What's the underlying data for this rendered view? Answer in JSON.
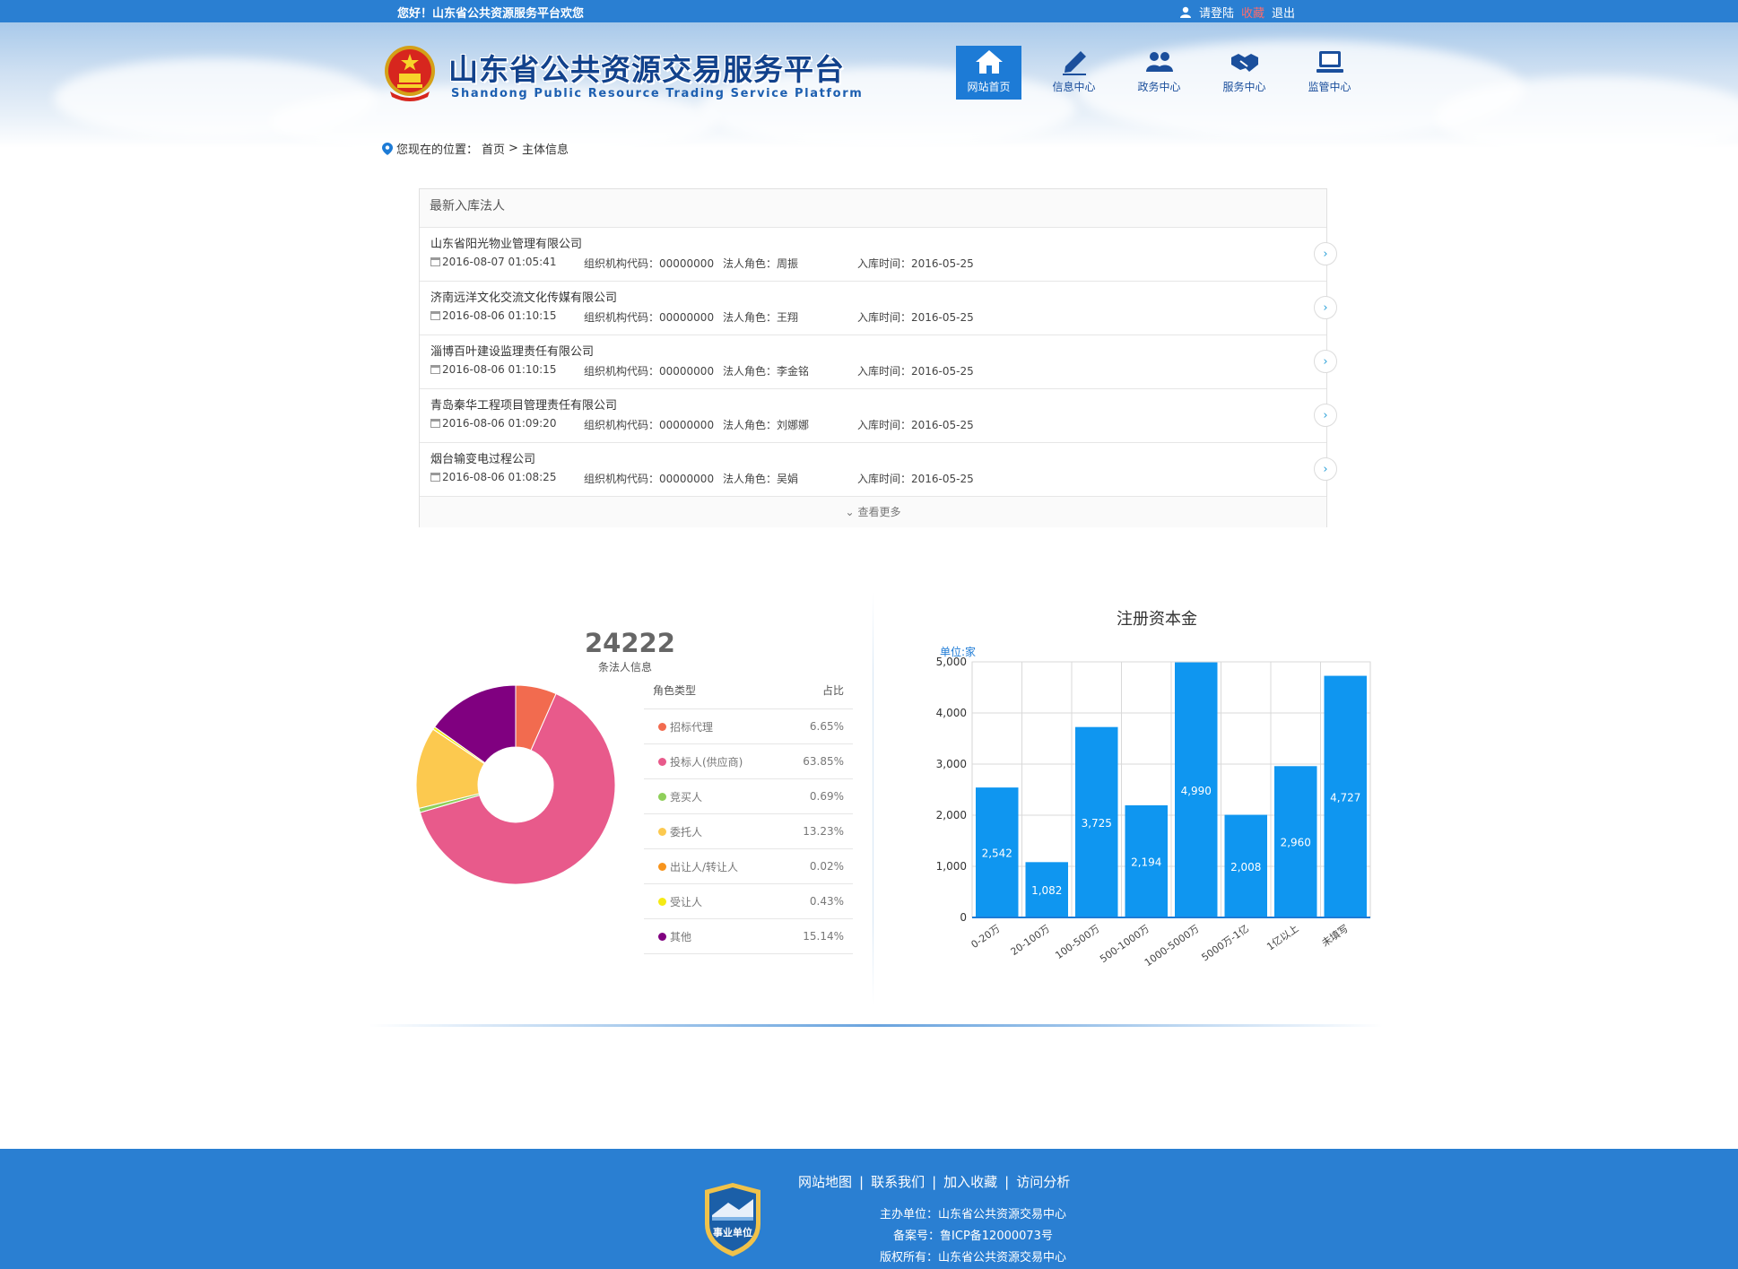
{
  "topbar": {
    "welcome": "您好！山东省公共资源服务平台欢您",
    "login": "请登陆",
    "favorite": "收藏",
    "logout": "退出"
  },
  "header": {
    "title": "山东省公共资源交易服务平台",
    "subtitle": "Shandong Public Resource Trading Service Platform",
    "nav": [
      {
        "label": "网站首页",
        "icon": "home-icon"
      },
      {
        "label": "信息中心",
        "icon": "pen-icon"
      },
      {
        "label": "政务中心",
        "icon": "users-icon"
      },
      {
        "label": "服务中心",
        "icon": "handshake-icon"
      },
      {
        "label": "监管中心",
        "icon": "monitor-icon"
      }
    ]
  },
  "breadcrumb": {
    "prefix": "您现在的位置：",
    "home": "首页",
    "sep": ">",
    "current": "主体信息"
  },
  "list": {
    "title": "最新入库法人",
    "more": "查看更多",
    "rows": [
      {
        "name": "山东省阳光物业管理有限公司",
        "time": "2016-08-07 01:05:41",
        "org": "组织机构代码：00000000",
        "role": "法人角色：周振",
        "date": "入库时间：2016-05-25"
      },
      {
        "name": "济南远洋文化交流文化传媒有限公司",
        "time": "2016-08-06 01:10:15",
        "org": "组织机构代码：00000000",
        "role": "法人角色：王翔",
        "date": "入库时间：2016-05-25"
      },
      {
        "name": "淄博百叶建设监理责任有限公司",
        "time": "2016-08-06 01:10:15",
        "org": "组织机构代码：00000000",
        "role": "法人角色：李金铭",
        "date": "入库时间：2016-05-25"
      },
      {
        "name": "青岛秦华工程项目管理责任有限公司",
        "time": "2016-08-06 01:09:20",
        "org": "组织机构代码：00000000",
        "role": "法人角色：刘娜娜",
        "date": "入库时间：2016-05-25"
      },
      {
        "name": "烟台输变电过程公司",
        "time": "2016-08-06 01:08:25",
        "org": "组织机构代码：00000000",
        "role": "法人角色：吴娟",
        "date": "入库时间：2016-05-25"
      }
    ]
  },
  "stats": {
    "total": "24222",
    "total_label": "条法人信息",
    "col_type": "角色类型",
    "col_ratio": "占比",
    "roles": [
      {
        "name": "招标代理",
        "pct": "6.65%",
        "value": 6.65,
        "color": "#f26b4f"
      },
      {
        "name": "投标人(供应商)",
        "pct": "63.85%",
        "value": 63.85,
        "color": "#e85a8b"
      },
      {
        "name": "竞买人",
        "pct": "0.69%",
        "value": 0.69,
        "color": "#8fcf5a"
      },
      {
        "name": "委托人",
        "pct": "13.23%",
        "value": 13.23,
        "color": "#fcc94f"
      },
      {
        "name": "出让人/转让人",
        "pct": "0.02%",
        "value": 0.02,
        "color": "#f7941d"
      },
      {
        "name": "受让人",
        "pct": "0.43%",
        "value": 0.43,
        "color": "#f5ea14"
      },
      {
        "name": "其他",
        "pct": "15.14%",
        "value": 15.14,
        "color": "#800080"
      }
    ]
  },
  "chart_data": {
    "type": "bar",
    "title": "注册资本金",
    "ylabel": "单位:家",
    "categories": [
      "0-20万",
      "20-100万",
      "100-500万",
      "500-1000万",
      "1000-5000万",
      "5000万-1亿",
      "1亿以上",
      "未填写"
    ],
    "values": [
      2542,
      1082,
      3725,
      2194,
      4990,
      2008,
      2960,
      4727
    ],
    "ylim": [
      0,
      5000
    ],
    "yticks": [
      0,
      1000,
      2000,
      3000,
      4000,
      5000
    ],
    "bar_color": "#0f96f0",
    "grid": true
  },
  "footer": {
    "links": [
      "网站地图",
      "联系我们",
      "加入收藏",
      "访问分析"
    ],
    "sponsor": "主办单位：山东省公共资源交易中心",
    "icp": "备案号：鲁ICP备12000073号",
    "copyright": "版权所有：山东省公共资源交易中心",
    "badge_text": "事业单位"
  }
}
